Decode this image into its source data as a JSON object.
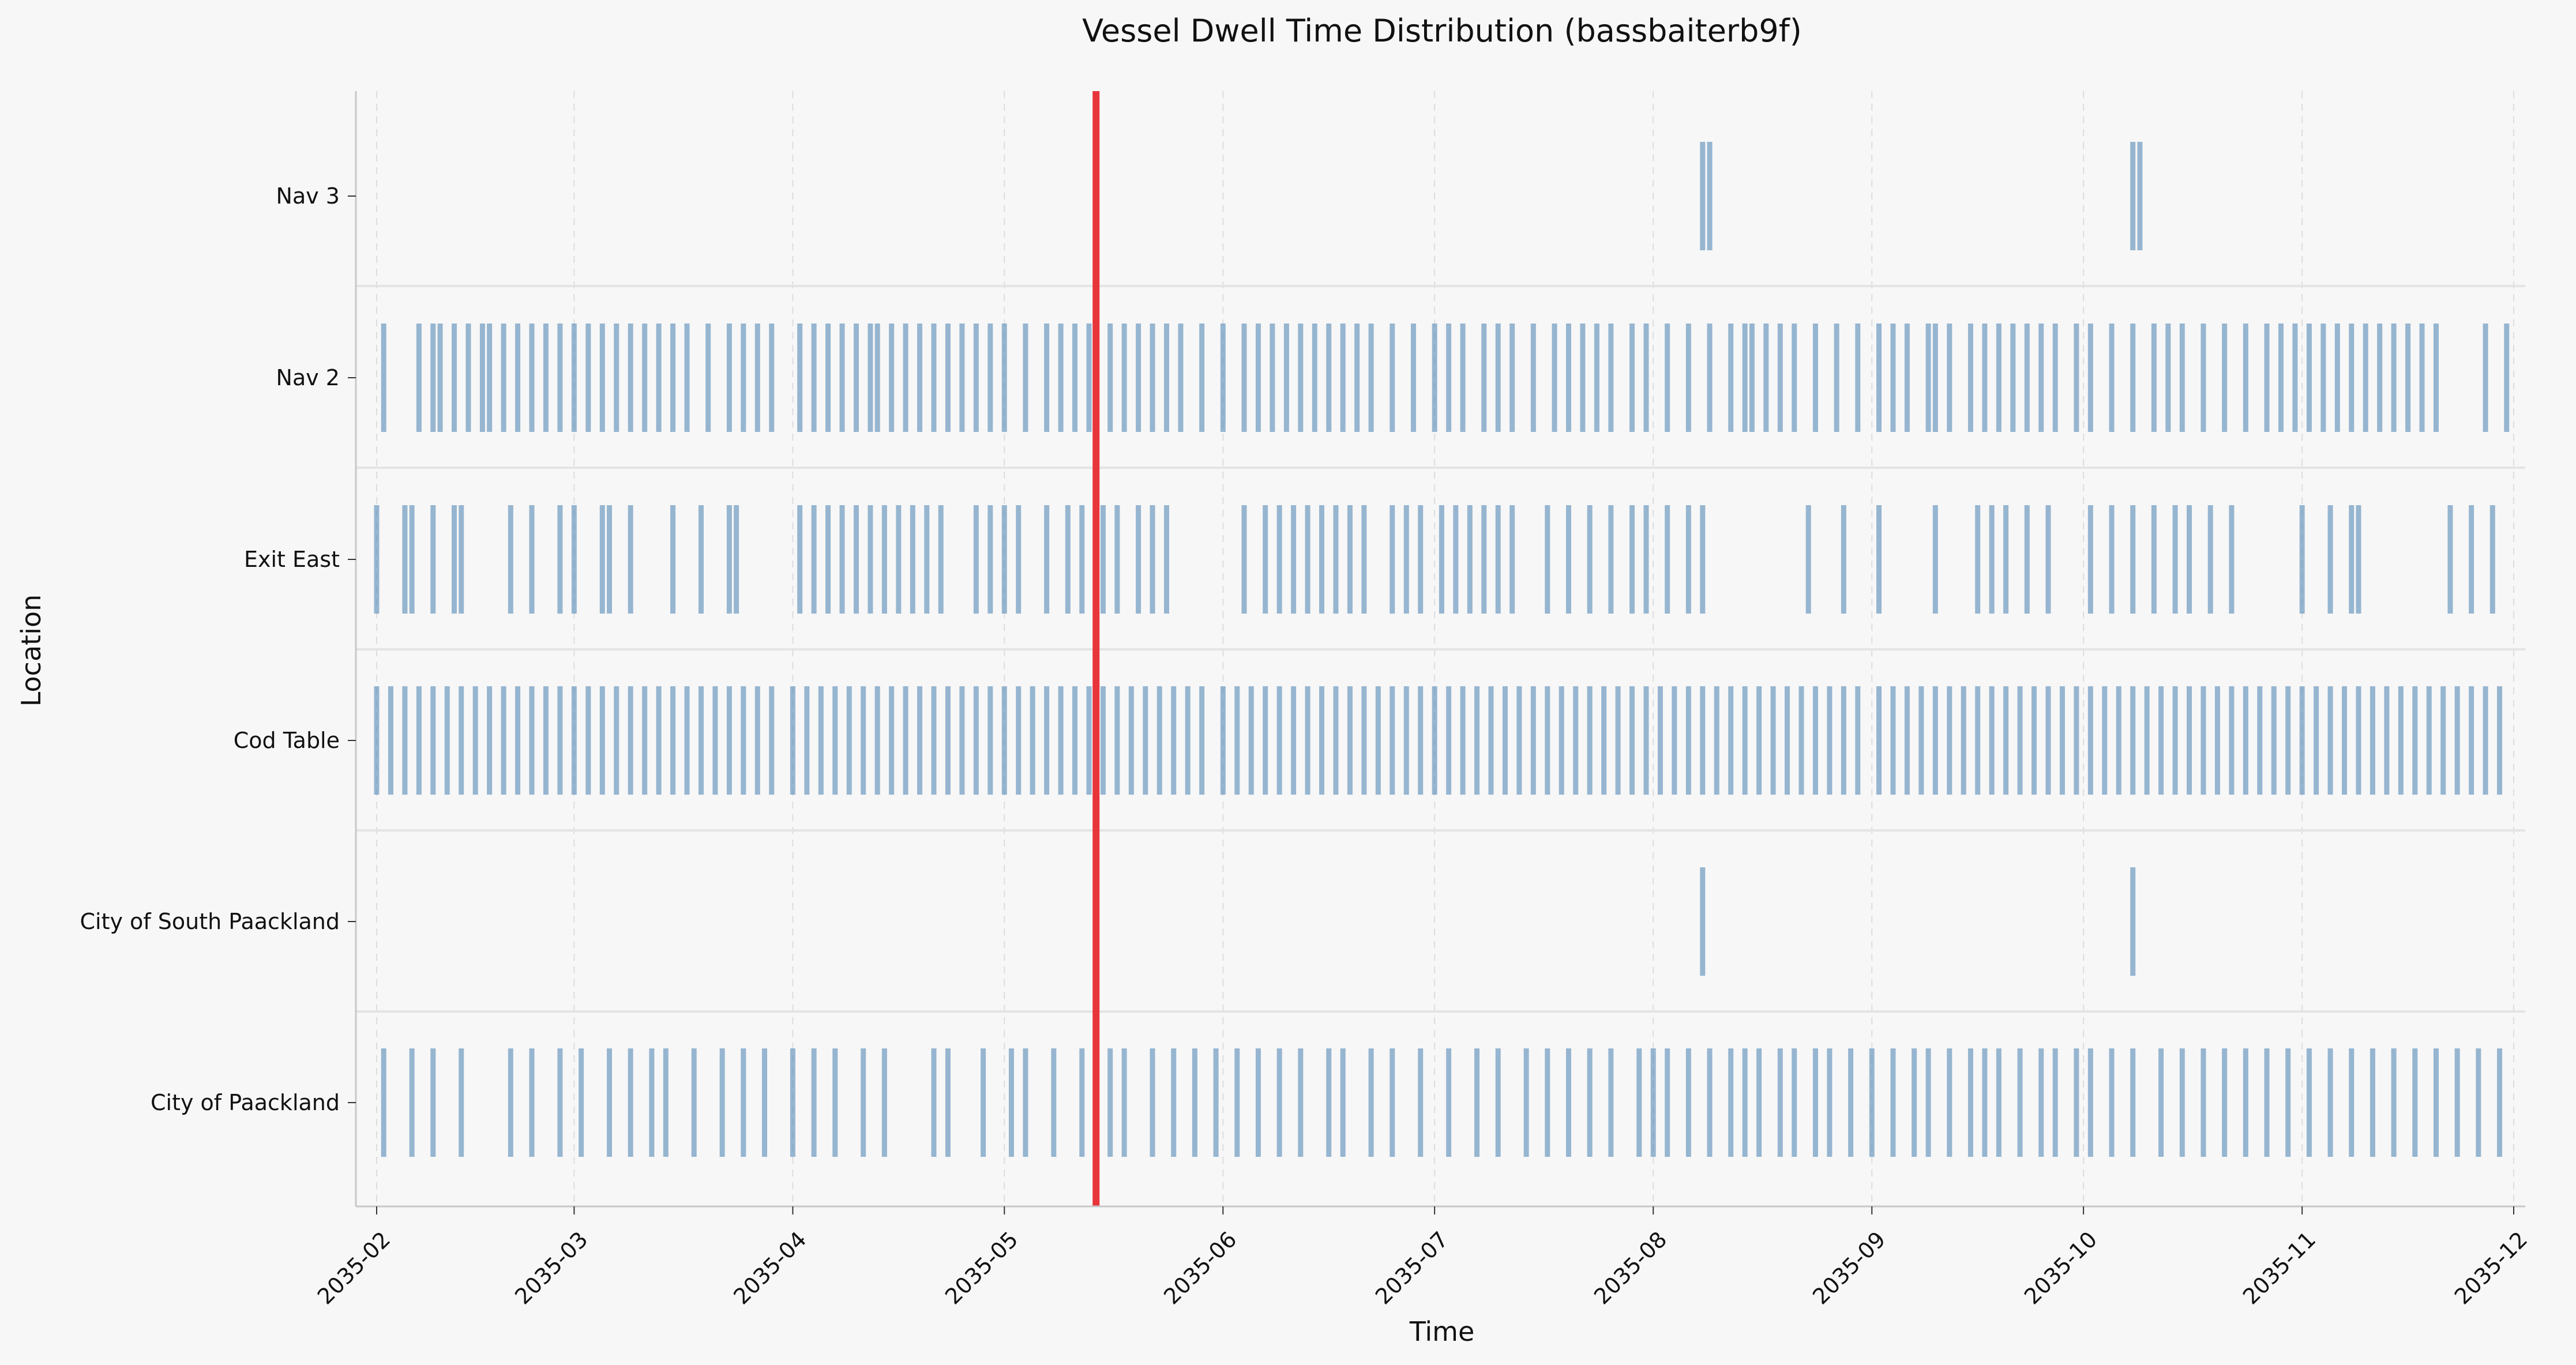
{
  "chart_data": {
    "type": "timeline",
    "title": "Vessel Dwell Time Distribution (bassbaiterb9f)",
    "xlabel": "Time",
    "ylabel": "Location",
    "xlim": [
      "2035-01-29",
      "2035-12-03"
    ],
    "x_ticks": [
      "2035-02",
      "2035-03",
      "2035-04",
      "2035-05",
      "2035-06",
      "2035-07",
      "2035-08",
      "2035-09",
      "2035-10",
      "2035-11",
      "2035-12"
    ],
    "categories": [
      "Nav 3",
      "Nav 2",
      "Exit East",
      "Cod Table",
      "City of South Paackland",
      "City of Paackland"
    ],
    "grid": "vertical dashed",
    "colors": {
      "bar": "#5b8db8",
      "marker": "#e8353a",
      "background": "#f7f7f7",
      "axis": "#c8c8c8"
    },
    "marker_line": {
      "date": "2035-05-14"
    },
    "series": [
      {
        "location": "Nav 3",
        "dates": [
          "2035-08-08",
          "2035-08-09",
          "2035-10-08",
          "2035-10-09"
        ]
      },
      {
        "location": "Nav 2",
        "dates": [
          "2035-02-02",
          "2035-02-07",
          "2035-02-09",
          "2035-02-10",
          "2035-02-12",
          "2035-02-14",
          "2035-02-16",
          "2035-02-17",
          "2035-02-19",
          "2035-02-21",
          "2035-02-23",
          "2035-02-25",
          "2035-02-27",
          "2035-03-01",
          "2035-03-03",
          "2035-03-05",
          "2035-03-07",
          "2035-03-09",
          "2035-03-11",
          "2035-03-13",
          "2035-03-15",
          "2035-03-17",
          "2035-03-20",
          "2035-03-23",
          "2035-03-25",
          "2035-03-27",
          "2035-03-29",
          "2035-04-02",
          "2035-04-04",
          "2035-04-06",
          "2035-04-08",
          "2035-04-10",
          "2035-04-12",
          "2035-04-13",
          "2035-04-15",
          "2035-04-17",
          "2035-04-19",
          "2035-04-21",
          "2035-04-23",
          "2035-04-25",
          "2035-04-27",
          "2035-04-29",
          "2035-05-01",
          "2035-05-04",
          "2035-05-07",
          "2035-05-09",
          "2035-05-11",
          "2035-05-13",
          "2035-05-16",
          "2035-05-18",
          "2035-05-20",
          "2035-05-22",
          "2035-05-24",
          "2035-05-26",
          "2035-05-29",
          "2035-06-01",
          "2035-06-04",
          "2035-06-06",
          "2035-06-08",
          "2035-06-10",
          "2035-06-12",
          "2035-06-14",
          "2035-06-16",
          "2035-06-18",
          "2035-06-20",
          "2035-06-22",
          "2035-06-25",
          "2035-06-28",
          "2035-07-01",
          "2035-07-03",
          "2035-07-05",
          "2035-07-08",
          "2035-07-10",
          "2035-07-12",
          "2035-07-15",
          "2035-07-18",
          "2035-07-20",
          "2035-07-22",
          "2035-07-24",
          "2035-07-26",
          "2035-07-29",
          "2035-07-31",
          "2035-08-03",
          "2035-08-06",
          "2035-08-09",
          "2035-08-12",
          "2035-08-14",
          "2035-08-15",
          "2035-08-17",
          "2035-08-19",
          "2035-08-21",
          "2035-08-24",
          "2035-08-27",
          "2035-08-30",
          "2035-09-02",
          "2035-09-04",
          "2035-09-06",
          "2035-09-09",
          "2035-09-10",
          "2035-09-12",
          "2035-09-15",
          "2035-09-17",
          "2035-09-19",
          "2035-09-21",
          "2035-09-23",
          "2035-09-25",
          "2035-09-27",
          "2035-09-30",
          "2035-10-02",
          "2035-10-05",
          "2035-10-08",
          "2035-10-11",
          "2035-10-13",
          "2035-10-15",
          "2035-10-18",
          "2035-10-21",
          "2035-10-24",
          "2035-10-27",
          "2035-10-29",
          "2035-10-31",
          "2035-11-02",
          "2035-11-04",
          "2035-11-06",
          "2035-11-08",
          "2035-11-10",
          "2035-11-12",
          "2035-11-14",
          "2035-11-16",
          "2035-11-18",
          "2035-11-20",
          "2035-11-27",
          "2035-11-30"
        ]
      },
      {
        "location": "Exit East",
        "dates": [
          "2035-02-01",
          "2035-02-05",
          "2035-02-06",
          "2035-02-09",
          "2035-02-12",
          "2035-02-13",
          "2035-02-20",
          "2035-02-23",
          "2035-02-27",
          "2035-03-01",
          "2035-03-05",
          "2035-03-06",
          "2035-03-09",
          "2035-03-15",
          "2035-03-19",
          "2035-03-23",
          "2035-03-24",
          "2035-04-02",
          "2035-04-04",
          "2035-04-06",
          "2035-04-08",
          "2035-04-10",
          "2035-04-12",
          "2035-04-14",
          "2035-04-16",
          "2035-04-18",
          "2035-04-20",
          "2035-04-22",
          "2035-04-27",
          "2035-04-29",
          "2035-05-01",
          "2035-05-03",
          "2035-05-07",
          "2035-05-10",
          "2035-05-12",
          "2035-05-15",
          "2035-05-17",
          "2035-05-20",
          "2035-05-22",
          "2035-05-24",
          "2035-06-04",
          "2035-06-07",
          "2035-06-09",
          "2035-06-11",
          "2035-06-13",
          "2035-06-15",
          "2035-06-17",
          "2035-06-19",
          "2035-06-21",
          "2035-06-25",
          "2035-06-27",
          "2035-06-29",
          "2035-07-02",
          "2035-07-04",
          "2035-07-06",
          "2035-07-08",
          "2035-07-10",
          "2035-07-12",
          "2035-07-17",
          "2035-07-20",
          "2035-07-23",
          "2035-07-26",
          "2035-07-29",
          "2035-07-31",
          "2035-08-03",
          "2035-08-06",
          "2035-08-08",
          "2035-08-23",
          "2035-08-28",
          "2035-09-02",
          "2035-09-10",
          "2035-09-16",
          "2035-09-18",
          "2035-09-20",
          "2035-09-23",
          "2035-09-26",
          "2035-10-02",
          "2035-10-05",
          "2035-10-08",
          "2035-10-11",
          "2035-10-14",
          "2035-10-16",
          "2035-10-19",
          "2035-10-22",
          "2035-11-01",
          "2035-11-05",
          "2035-11-08",
          "2035-11-09",
          "2035-11-22",
          "2035-11-25",
          "2035-11-28"
        ]
      },
      {
        "location": "Cod Table",
        "dates": [
          "2035-02-01",
          "2035-02-03",
          "2035-02-05",
          "2035-02-07",
          "2035-02-09",
          "2035-02-11",
          "2035-02-13",
          "2035-02-15",
          "2035-02-17",
          "2035-02-19",
          "2035-02-21",
          "2035-02-23",
          "2035-02-25",
          "2035-02-27",
          "2035-03-01",
          "2035-03-03",
          "2035-03-05",
          "2035-03-07",
          "2035-03-09",
          "2035-03-11",
          "2035-03-13",
          "2035-03-15",
          "2035-03-17",
          "2035-03-19",
          "2035-03-21",
          "2035-03-23",
          "2035-03-25",
          "2035-03-27",
          "2035-03-29",
          "2035-04-01",
          "2035-04-03",
          "2035-04-05",
          "2035-04-07",
          "2035-04-09",
          "2035-04-11",
          "2035-04-13",
          "2035-04-15",
          "2035-04-17",
          "2035-04-19",
          "2035-04-21",
          "2035-04-23",
          "2035-04-25",
          "2035-04-27",
          "2035-04-29",
          "2035-05-01",
          "2035-05-03",
          "2035-05-05",
          "2035-05-07",
          "2035-05-09",
          "2035-05-11",
          "2035-05-13",
          "2035-05-15",
          "2035-05-17",
          "2035-05-19",
          "2035-05-21",
          "2035-05-23",
          "2035-05-25",
          "2035-05-27",
          "2035-05-29",
          "2035-06-01",
          "2035-06-03",
          "2035-06-05",
          "2035-06-07",
          "2035-06-09",
          "2035-06-11",
          "2035-06-13",
          "2035-06-15",
          "2035-06-17",
          "2035-06-19",
          "2035-06-21",
          "2035-06-23",
          "2035-06-25",
          "2035-06-27",
          "2035-06-29",
          "2035-07-01",
          "2035-07-03",
          "2035-07-05",
          "2035-07-07",
          "2035-07-09",
          "2035-07-11",
          "2035-07-13",
          "2035-07-15",
          "2035-07-17",
          "2035-07-19",
          "2035-07-21",
          "2035-07-23",
          "2035-07-25",
          "2035-07-27",
          "2035-07-29",
          "2035-07-31",
          "2035-08-02",
          "2035-08-04",
          "2035-08-06",
          "2035-08-08",
          "2035-08-10",
          "2035-08-12",
          "2035-08-14",
          "2035-08-16",
          "2035-08-18",
          "2035-08-20",
          "2035-08-22",
          "2035-08-24",
          "2035-08-26",
          "2035-08-28",
          "2035-08-30",
          "2035-09-02",
          "2035-09-04",
          "2035-09-06",
          "2035-09-08",
          "2035-09-10",
          "2035-09-12",
          "2035-09-14",
          "2035-09-16",
          "2035-09-18",
          "2035-09-20",
          "2035-09-22",
          "2035-09-24",
          "2035-09-26",
          "2035-09-28",
          "2035-09-30",
          "2035-10-02",
          "2035-10-04",
          "2035-10-06",
          "2035-10-08",
          "2035-10-10",
          "2035-10-12",
          "2035-10-14",
          "2035-10-16",
          "2035-10-18",
          "2035-10-20",
          "2035-10-22",
          "2035-10-24",
          "2035-10-26",
          "2035-10-28",
          "2035-10-30",
          "2035-11-01",
          "2035-11-03",
          "2035-11-05",
          "2035-11-07",
          "2035-11-09",
          "2035-11-11",
          "2035-11-13",
          "2035-11-15",
          "2035-11-17",
          "2035-11-19",
          "2035-11-21",
          "2035-11-23",
          "2035-11-25",
          "2035-11-27",
          "2035-11-29"
        ]
      },
      {
        "location": "City of South Paackland",
        "dates": [
          "2035-08-08",
          "2035-10-08"
        ]
      },
      {
        "location": "City of Paackland",
        "dates": [
          "2035-02-02",
          "2035-02-06",
          "2035-02-09",
          "2035-02-13",
          "2035-02-20",
          "2035-02-23",
          "2035-02-27",
          "2035-03-02",
          "2035-03-06",
          "2035-03-09",
          "2035-03-12",
          "2035-03-14",
          "2035-03-18",
          "2035-03-22",
          "2035-03-25",
          "2035-03-28",
          "2035-04-01",
          "2035-04-04",
          "2035-04-07",
          "2035-04-11",
          "2035-04-14",
          "2035-04-21",
          "2035-04-23",
          "2035-04-28",
          "2035-05-02",
          "2035-05-04",
          "2035-05-08",
          "2035-05-12",
          "2035-05-16",
          "2035-05-18",
          "2035-05-22",
          "2035-05-25",
          "2035-05-28",
          "2035-05-31",
          "2035-06-03",
          "2035-06-06",
          "2035-06-09",
          "2035-06-12",
          "2035-06-16",
          "2035-06-18",
          "2035-06-22",
          "2035-06-25",
          "2035-06-29",
          "2035-07-03",
          "2035-07-07",
          "2035-07-10",
          "2035-07-14",
          "2035-07-17",
          "2035-07-20",
          "2035-07-23",
          "2035-07-26",
          "2035-07-30",
          "2035-08-01",
          "2035-08-03",
          "2035-08-06",
          "2035-08-09",
          "2035-08-12",
          "2035-08-14",
          "2035-08-16",
          "2035-08-19",
          "2035-08-21",
          "2035-08-24",
          "2035-08-26",
          "2035-08-29",
          "2035-09-01",
          "2035-09-04",
          "2035-09-07",
          "2035-09-09",
          "2035-09-12",
          "2035-09-15",
          "2035-09-17",
          "2035-09-19",
          "2035-09-22",
          "2035-09-25",
          "2035-09-27",
          "2035-09-30",
          "2035-10-02",
          "2035-10-05",
          "2035-10-08",
          "2035-10-12",
          "2035-10-15",
          "2035-10-18",
          "2035-10-21",
          "2035-10-24",
          "2035-10-27",
          "2035-10-30",
          "2035-11-02",
          "2035-11-05",
          "2035-11-08",
          "2035-11-11",
          "2035-11-14",
          "2035-11-17",
          "2035-11-20",
          "2035-11-23",
          "2035-11-26",
          "2035-11-29"
        ]
      }
    ]
  }
}
